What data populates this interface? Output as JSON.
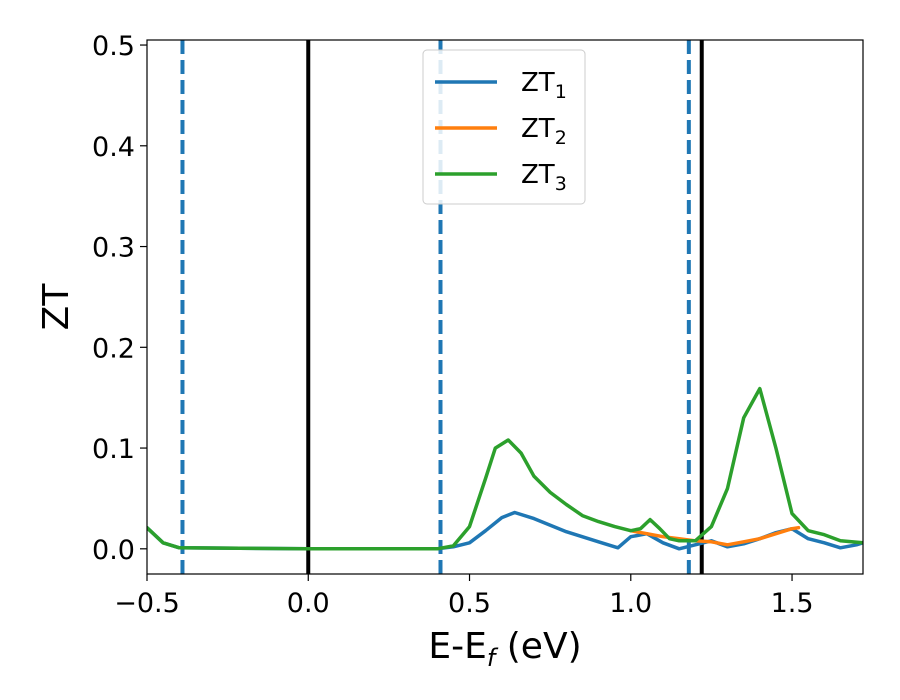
{
  "chart_data": {
    "type": "line",
    "xlabel": {
      "main": "E-E",
      "sub": "f",
      "tail": " (eV)"
    },
    "ylabel": "ZT",
    "xlim": [
      -0.5,
      1.72
    ],
    "ylim": [
      -0.025,
      0.505
    ],
    "xticks": [
      -0.5,
      0.0,
      0.5,
      1.0,
      1.5
    ],
    "xtick_labels": [
      "−0.5",
      "0.0",
      "0.5",
      "1.0",
      "1.5"
    ],
    "yticks": [
      0.0,
      0.1,
      0.2,
      0.3,
      0.4,
      0.5
    ],
    "ytick_labels": [
      "0.0",
      "0.1",
      "0.2",
      "0.3",
      "0.4",
      "0.5"
    ],
    "grid": false,
    "legend_position": "upper-center",
    "vlines": [
      {
        "x": -0.39,
        "style": "dashed",
        "color": "#1f77b4"
      },
      {
        "x": 0.0,
        "style": "solid",
        "color": "#000000"
      },
      {
        "x": 0.41,
        "style": "dashed",
        "color": "#1f77b4"
      },
      {
        "x": 1.18,
        "style": "dashed",
        "color": "#1f77b4"
      },
      {
        "x": 1.22,
        "style": "solid",
        "color": "#000000"
      }
    ],
    "series": [
      {
        "name": {
          "main": "ZT",
          "sub": "1"
        },
        "color": "#1f77b4",
        "x": [
          -0.5,
          -0.45,
          -0.4,
          0.0,
          0.4,
          0.45,
          0.5,
          0.55,
          0.6,
          0.64,
          0.7,
          0.8,
          0.9,
          0.96,
          1.0,
          1.05,
          1.1,
          1.15,
          1.2,
          1.25,
          1.3,
          1.35,
          1.4,
          1.45,
          1.5,
          1.55,
          1.6,
          1.65,
          1.7,
          1.72
        ],
        "y": [
          0.021,
          0.006,
          0.001,
          0.0,
          0.0,
          0.002,
          0.006,
          0.018,
          0.031,
          0.036,
          0.03,
          0.017,
          0.007,
          0.001,
          0.012,
          0.015,
          0.006,
          0.0,
          0.004,
          0.008,
          0.002,
          0.005,
          0.01,
          0.016,
          0.02,
          0.01,
          0.006,
          0.001,
          0.004,
          0.006
        ]
      },
      {
        "name": {
          "main": "ZT",
          "sub": "2"
        },
        "color": "#ff7f0e",
        "x": [
          1.0,
          1.05,
          1.1,
          1.15,
          1.2,
          1.25,
          1.3,
          1.35,
          1.4,
          1.45,
          1.5,
          1.52
        ],
        "y": [
          0.018,
          0.015,
          0.012,
          0.01,
          0.008,
          0.007,
          0.004,
          0.007,
          0.01,
          0.015,
          0.02,
          0.021
        ]
      },
      {
        "name": {
          "main": "ZT",
          "sub": "3"
        },
        "color": "#2ca02c",
        "x": [
          -0.5,
          -0.45,
          -0.4,
          0.0,
          0.4,
          0.45,
          0.5,
          0.55,
          0.58,
          0.62,
          0.66,
          0.7,
          0.75,
          0.8,
          0.85,
          0.9,
          0.95,
          1.0,
          1.03,
          1.06,
          1.09,
          1.12,
          1.15,
          1.2,
          1.25,
          1.3,
          1.35,
          1.4,
          1.45,
          1.5,
          1.55,
          1.6,
          1.65,
          1.72
        ],
        "y": [
          0.021,
          0.006,
          0.001,
          0.0,
          0.0,
          0.003,
          0.022,
          0.07,
          0.1,
          0.108,
          0.095,
          0.072,
          0.056,
          0.044,
          0.033,
          0.027,
          0.022,
          0.018,
          0.02,
          0.029,
          0.02,
          0.01,
          0.008,
          0.008,
          0.022,
          0.06,
          0.13,
          0.159,
          0.1,
          0.035,
          0.018,
          0.014,
          0.008,
          0.006
        ]
      }
    ]
  }
}
